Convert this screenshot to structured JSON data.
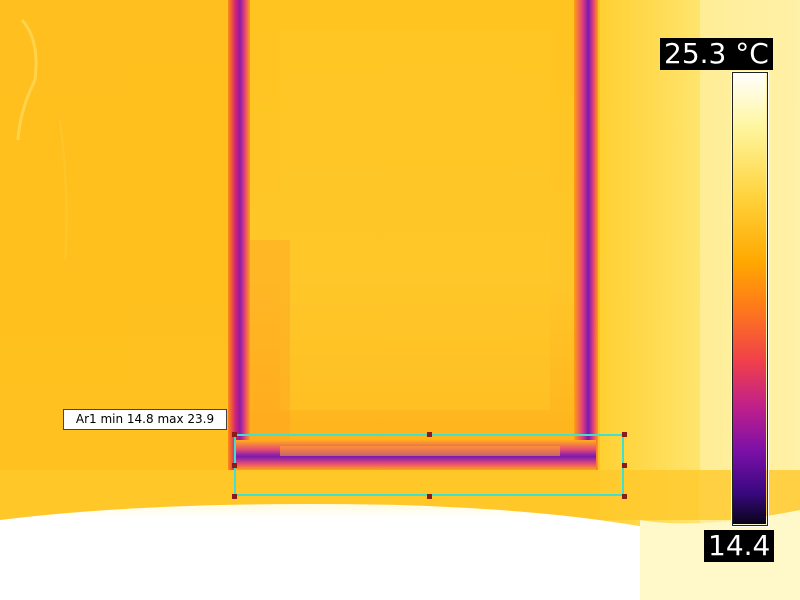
{
  "scale": {
    "max_label": "25.3 °C",
    "min_label": "14.4",
    "palette": [
      "#ffffff",
      "#fff6a0",
      "#ffd23a",
      "#ffa800",
      "#ff7a1a",
      "#f0404a",
      "#c0208a",
      "#7a10a8",
      "#3a0880",
      "#08041a"
    ]
  },
  "measurement": {
    "area_label": "Ar1 min 14.8 max 23.9",
    "roi_color": "#40e0d0",
    "handle_color": "#8b1a1a"
  }
}
